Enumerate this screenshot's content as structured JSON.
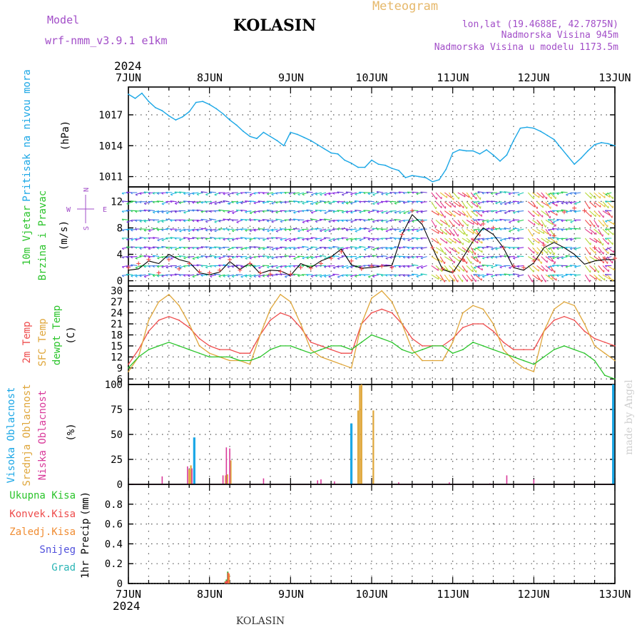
{
  "header": {
    "model_label": "Model",
    "model_name": "wrf-nmm_v3.9.1  e1km",
    "station": "KOLASIN",
    "meteogram_label": "Meteogram",
    "coords": "lon,lat (19.4688E, 42.7875N)",
    "elevation": "Nadmorska Visina 945m",
    "model_elevation": "Nadmorska Visina u modelu 1173.5m",
    "footer_station": "KOLASIN",
    "credit": "made by Angel"
  },
  "colors": {
    "pressure": "#1ba7e6",
    "temp2m": "#ee4b4b",
    "sfc_temp": "#dfa63a",
    "dewpoint": "#2bc42b",
    "wind_speed": "#000000",
    "gust": "#ee4b4b",
    "high_cloud": "#1ba7e6",
    "mid_cloud": "#dfa63a",
    "low_cloud": "#d93a9a",
    "total_precip": "#2bc42b",
    "conv_precip": "#ee4b4b",
    "frz_precip": "#f08c32",
    "snow": "#5050dc",
    "hail": "#2ab5b5",
    "title_purple": "#a24ec8",
    "meteogram_orange": "#e6b86a",
    "grid": "#555555"
  },
  "time_axis": {
    "top_year": "2024",
    "bottom_year": "2024",
    "labels": [
      "7JUN",
      "8JUN",
      "9JUN",
      "10JUN",
      "11JUN",
      "12JUN",
      "13JUN"
    ]
  },
  "chart_data": [
    {
      "type": "line",
      "panel": "pressure",
      "ylabel_main": "Pritisak na nivou mora",
      "ylabel_unit": "(hPa)",
      "yticks": [
        "1017",
        "1014",
        "1011"
      ],
      "ylim": [
        1010.0,
        1019.7
      ],
      "x_unit": "hours since 7JUN 00",
      "x": [
        0,
        2,
        4,
        6,
        8,
        10,
        12,
        14,
        16,
        18,
        20,
        22,
        24,
        26,
        28,
        30,
        32,
        34,
        36,
        38,
        40,
        42,
        44,
        46,
        48,
        50,
        52,
        54,
        56,
        58,
        60,
        62,
        64,
        66,
        68,
        70,
        72,
        74,
        76,
        78,
        80,
        82,
        84,
        86,
        88,
        90,
        92,
        94,
        96,
        98,
        100,
        102,
        104,
        106,
        108,
        110,
        112,
        114,
        116,
        118,
        120,
        122,
        124,
        126,
        128,
        130,
        132,
        134,
        136,
        138,
        140,
        142,
        144
      ],
      "series": [
        {
          "name": "",
          "values": [
            1019.0,
            1018.6,
            1019.1,
            1018.3,
            1017.7,
            1017.4,
            1016.9,
            1016.5,
            1016.8,
            1017.3,
            1018.2,
            1018.3,
            1018.0,
            1017.6,
            1017.1,
            1016.5,
            1016.0,
            1015.4,
            1014.9,
            1014.7,
            1015.3,
            1014.9,
            1014.5,
            1014.0,
            1015.3,
            1015.1,
            1014.8,
            1014.5,
            1014.1,
            1013.7,
            1013.3,
            1013.2,
            1012.6,
            1012.3,
            1011.9,
            1011.9,
            1012.6,
            1012.2,
            1012.1,
            1011.8,
            1011.6,
            1010.9,
            1011.1,
            1011.0,
            1010.9,
            1010.5,
            1010.7,
            1011.7,
            1013.3,
            1013.6,
            1013.5,
            1013.5,
            1013.2,
            1013.6,
            1013.1,
            1012.5,
            1013.1,
            1014.5,
            1015.7,
            1015.8,
            1015.7,
            1015.4,
            1015.0,
            1014.6,
            1013.8,
            1013.0,
            1012.2,
            1012.8,
            1013.5,
            1014.1,
            1014.3,
            1014.2,
            1014.0
          ]
        }
      ]
    },
    {
      "type": "line",
      "panel": "wind",
      "ylabel_main": "10m Vjetar",
      "ylabel_sub": "Brzina i Pravac",
      "ylabel_unit": "(m/s)",
      "compass": {
        "north": "N",
        "south": "S",
        "west": "W",
        "east": "E"
      },
      "yticks": [
        "12",
        "8",
        "4",
        "0"
      ],
      "ylim": [
        -0.8,
        14.2
      ],
      "x_unit": "hours since 7JUN 00",
      "x": [
        0,
        3,
        6,
        9,
        12,
        15,
        18,
        21,
        24,
        27,
        30,
        33,
        36,
        39,
        42,
        45,
        48,
        51,
        54,
        57,
        60,
        63,
        66,
        69,
        72,
        75,
        78,
        81,
        84,
        87,
        90,
        93,
        96,
        99,
        102,
        105,
        108,
        111,
        114,
        117,
        120,
        123,
        126,
        129,
        132,
        135,
        138,
        141,
        144
      ],
      "series": [
        {
          "name": "",
          "values": [
            1.6,
            1.8,
            3.0,
            2.6,
            4.0,
            3.2,
            2.8,
            1.2,
            0.9,
            1.3,
            2.9,
            1.7,
            2.7,
            1.1,
            1.6,
            1.5,
            0.8,
            2.6,
            2.0,
            3.0,
            3.6,
            4.8,
            2.4,
            1.9,
            2.0,
            2.2,
            2.3,
            7.0,
            10.0,
            8.5,
            5.0,
            1.7,
            1.2,
            3.5,
            6.0,
            8.0,
            7.0,
            5.0,
            2.0,
            1.6,
            2.7,
            5.0,
            5.8,
            5.0,
            4.0,
            2.5,
            3.0,
            3.2,
            3.2
          ]
        },
        {
          "name": "",
          "values": [
            2.0,
            2.6,
            3.2,
            1.2,
            3.2,
            1.8,
            2.6,
            1.4,
            1.2,
            1.6,
            3.2,
            1.6,
            2.6,
            1.2,
            1.0,
            1.4,
            1.0,
            2.0,
            1.9,
            2.6,
            3.4,
            4.4,
            3.0,
            1.8,
            2.2,
            2.2,
            2.0,
            7.0,
            10.6,
            9.0,
            5.0,
            1.8,
            1.4,
            3.2,
            6.2,
            8.6,
            8.0,
            5.0,
            2.2,
            2.0,
            3.0,
            5.4,
            6.8,
            10.4,
            11.0,
            10.6,
            5.0,
            3.4,
            3.4
          ]
        }
      ]
    },
    {
      "type": "line",
      "panel": "temperature",
      "ylabel_main": "2m Temp",
      "ylabel_sub": "SFC Temp",
      "ylabel_sub2": "dewpt Temp",
      "ylabel_unit": "(C)",
      "yticks": [
        "30",
        "27",
        "24",
        "21",
        "18",
        "15",
        "12",
        "9",
        "6"
      ],
      "ylim": [
        4.5,
        31.3
      ],
      "x_unit": "hours since 7JUN 00",
      "x": [
        0,
        3,
        6,
        9,
        12,
        15,
        18,
        21,
        24,
        27,
        30,
        33,
        36,
        39,
        42,
        45,
        48,
        51,
        54,
        57,
        60,
        63,
        66,
        69,
        72,
        75,
        78,
        81,
        84,
        87,
        90,
        93,
        96,
        99,
        102,
        105,
        108,
        111,
        114,
        117,
        120,
        123,
        126,
        129,
        132,
        135,
        138,
        141,
        144
      ],
      "series": [
        {
          "name": "",
          "values": [
            10,
            14,
            19,
            22,
            23,
            22,
            20,
            17,
            15,
            14,
            14,
            13,
            13,
            18,
            22,
            24,
            23,
            20,
            16,
            15,
            14,
            13,
            13,
            21,
            24,
            25,
            24,
            21,
            17,
            15,
            15,
            15,
            17,
            20,
            21,
            21,
            19,
            16,
            14,
            14,
            14,
            19,
            22,
            23,
            22,
            19,
            17,
            16,
            15
          ]
        },
        {
          "name": "",
          "values": [
            8,
            12,
            22,
            27,
            29,
            26,
            21,
            15,
            13,
            12,
            11,
            11,
            10,
            18,
            25,
            29,
            27,
            21,
            14,
            12,
            11,
            10,
            9,
            21,
            28,
            30,
            27,
            21,
            14,
            11,
            11,
            11,
            16,
            24,
            26,
            25,
            21,
            14,
            11,
            9,
            8,
            19,
            25,
            27,
            26,
            21,
            15,
            13,
            11
          ]
        },
        {
          "name": "",
          "values": [
            9,
            12,
            14,
            15,
            16,
            15,
            14,
            13,
            12,
            12,
            12,
            11,
            11,
            12,
            14,
            15,
            15,
            14,
            13,
            14,
            15,
            15,
            14,
            16,
            18,
            17,
            16,
            14,
            13,
            14,
            15,
            15,
            13,
            14,
            16,
            15,
            14,
            13,
            12,
            11,
            10,
            12,
            14,
            15,
            14,
            13,
            11,
            7,
            6
          ]
        }
      ]
    },
    {
      "type": "bar",
      "panel": "clouds",
      "ylabel_main": "Visoka Oblacnost",
      "ylabel_sub": "Srednja Oblacnost",
      "ylabel_sub2": "Niska Oblacnost",
      "ylabel_unit": "(%)",
      "yticks": [
        "100",
        "75",
        "50",
        "25",
        "0"
      ],
      "ylim": [
        0,
        100
      ],
      "x_unit": "hours since 7JUN 00",
      "series": [
        {
          "name": "",
          "x": [
            17,
            18,
            19,
            19.5,
            28.5,
            29,
            29.5,
            30,
            31,
            41,
            53,
            54,
            58,
            59,
            60,
            63,
            63.5,
            66,
            76,
            77,
            78,
            90,
            96,
            108,
            111,
            114,
            115,
            126,
            133,
            143.5
          ],
          "values": [
            0,
            0,
            0,
            47,
            0,
            0,
            0,
            0,
            0,
            0,
            0,
            0,
            0,
            0,
            0,
            0,
            0,
            61,
            0,
            0,
            0,
            0,
            0,
            0,
            0,
            0,
            0,
            0,
            0,
            100
          ]
        },
        {
          "name": "",
          "x": [
            18,
            18.5,
            28.8,
            29.3,
            30.3,
            68,
            68.5,
            69,
            72.5
          ],
          "values": [
            15,
            19,
            9,
            10,
            24,
            74,
            99,
            100,
            74
          ]
        },
        {
          "name": "",
          "x": [
            10,
            17.5,
            18.8,
            28,
            29,
            30,
            40,
            56,
            57,
            61,
            80,
            95,
            107,
            112,
            120
          ],
          "values": [
            8,
            18,
            16,
            9,
            37,
            36,
            6,
            4,
            5,
            3,
            2,
            2,
            1,
            9,
            5
          ]
        }
      ]
    },
    {
      "type": "bar",
      "panel": "precip",
      "ylabel_main": "1hr Precip",
      "ylabel_unit": "(mm)",
      "legend": [
        "Ukupna  Kisa",
        "Konvek.Kisa",
        "Zaledj.Kisa",
        "Snijeg",
        "Grad"
      ],
      "yticks": [
        "0.8",
        "0.6",
        "0.4",
        "0.2",
        "0"
      ],
      "ylim": [
        0,
        1.0
      ],
      "x_unit": "hours since 7JUN 00",
      "series": [
        {
          "name": "Ukupna  Kisa",
          "x": [
            28.6,
            29.0,
            29.4
          ],
          "values": [
            0.02,
            0.04,
            0.12
          ]
        },
        {
          "name": "Konvek.Kisa",
          "x": [
            28.7,
            29.1,
            29.5
          ],
          "values": [
            0.02,
            0.03,
            0.11
          ]
        },
        {
          "name": "Zaledj.Kisa",
          "x": [
            29.8
          ],
          "values": [
            0.1
          ]
        }
      ]
    }
  ]
}
